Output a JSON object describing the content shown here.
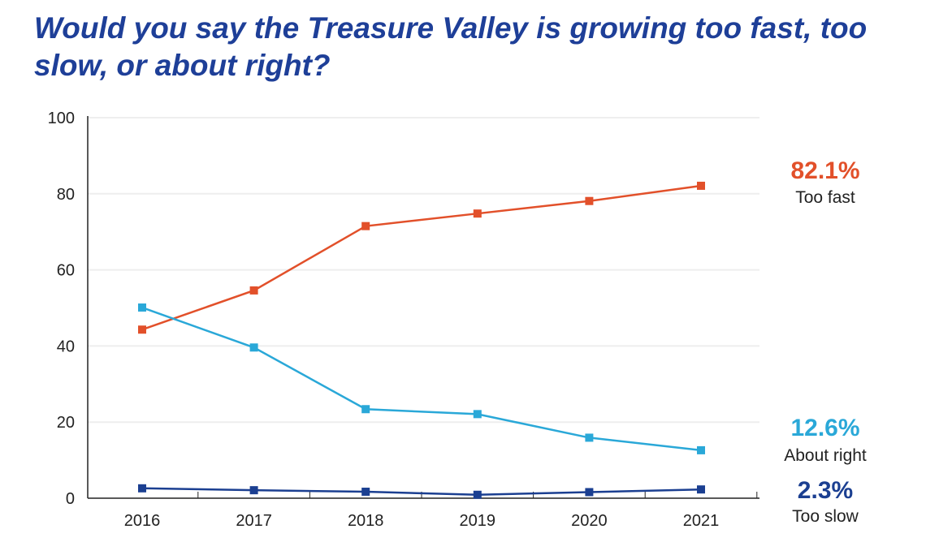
{
  "chart_data": {
    "type": "line",
    "title": "Would you say the Treasure Valley is growing too fast, too slow, or about right?",
    "x": [
      "2016",
      "2017",
      "2018",
      "2019",
      "2020",
      "2021"
    ],
    "ylim": [
      0,
      100
    ],
    "yticks": [
      "0",
      "20",
      "40",
      "60",
      "80",
      "100"
    ],
    "grid": true,
    "series": [
      {
        "name": "Too fast",
        "end_label": "82.1%",
        "color": "#e2502a",
        "values": [
          44.3,
          54.6,
          71.5,
          74.8,
          78.1,
          82.1
        ]
      },
      {
        "name": "About right",
        "end_label": "12.6%",
        "color": "#2aa8d8",
        "values": [
          50.1,
          39.6,
          23.4,
          22.1,
          15.9,
          12.6
        ]
      },
      {
        "name": "Too slow",
        "end_label": "2.3%",
        "color": "#1b3f91",
        "values": [
          2.6,
          2.1,
          1.7,
          0.9,
          1.6,
          2.3
        ]
      }
    ]
  }
}
